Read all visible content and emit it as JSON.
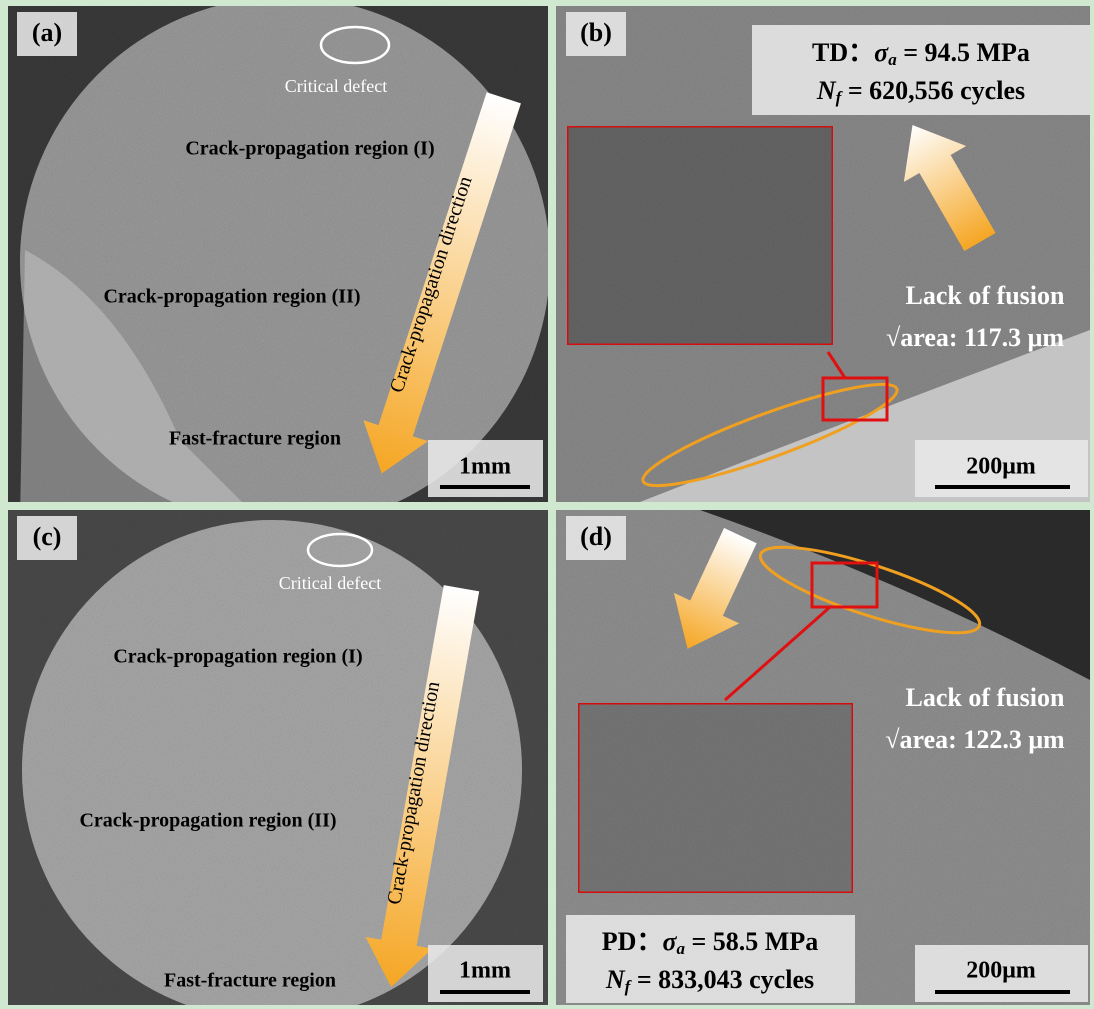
{
  "panels": [
    {
      "label": "(a)",
      "critical_defect": "Critical defect",
      "region_1": "Crack-propagation region (I)",
      "region_2": "Crack-propagation region (II)",
      "fast_fracture": "Fast-fracture region",
      "direction": "Crack-propagation direction",
      "scale_bar": "1mm"
    },
    {
      "label": "(b)",
      "stress": {
        "prefix": "TD：",
        "symbol": "σ",
        "sub": "a",
        "value": " = 94.5 MPa"
      },
      "cycles": {
        "symbol": "N",
        "sub": "f",
        "value": " = 620,556 cycles"
      },
      "defect": "Lack of fusion",
      "area": "√area: 117.3 μm",
      "scale_bar": "200μm"
    },
    {
      "label": "(c)",
      "critical_defect": "Critical defect",
      "region_1": "Crack-propagation region (I)",
      "region_2": "Crack-propagation region (II)",
      "fast_fracture": "Fast-fracture region",
      "direction": "Crack-propagation direction",
      "scale_bar": "1mm"
    },
    {
      "label": "(d)",
      "stress": {
        "prefix": "PD：",
        "symbol": "σ",
        "sub": "a",
        "value": " = 58.5 MPa"
      },
      "cycles": {
        "symbol": "N",
        "sub": "f",
        "value": " = 833,043 cycles"
      },
      "defect": "Lack of fusion",
      "area": "√area: 122.3 μm",
      "scale_bar": "200μm"
    }
  ]
}
